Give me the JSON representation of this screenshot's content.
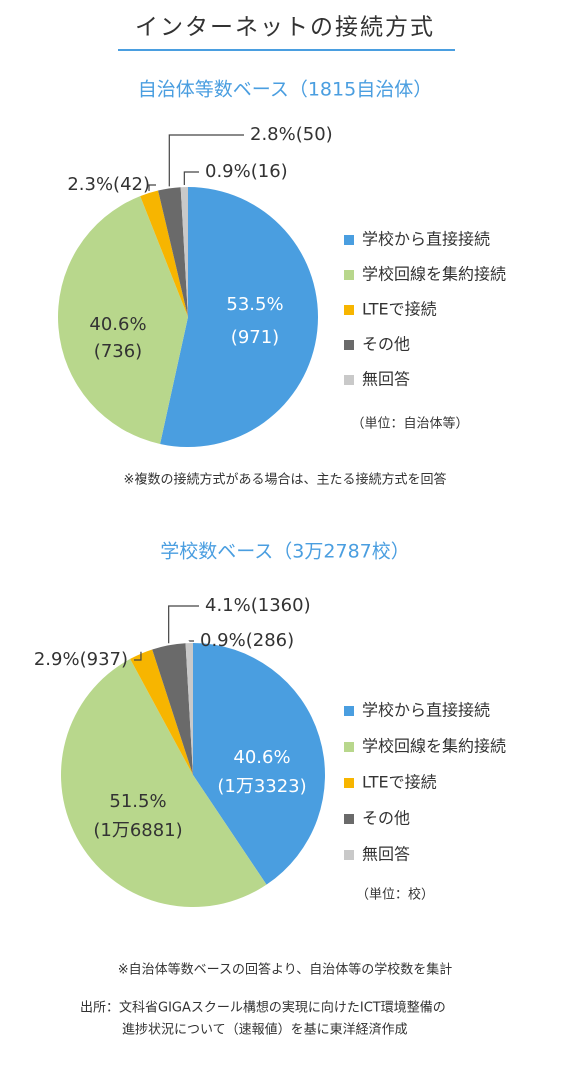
{
  "title": "インターネットの接続方式",
  "chart_data": [
    {
      "type": "pie",
      "subtitle": "自治体等数ベース（1815自治体）",
      "categories": [
        "学校から直接接続",
        "学校回線を集約接続",
        "LTEで接続",
        "その他",
        "無回答"
      ],
      "values": [
        53.5,
        40.6,
        2.3,
        2.8,
        0.9
      ],
      "value_labels": [
        "53.5%",
        "40.6%",
        "2.3%",
        "2.8%",
        "0.9%"
      ],
      "count_labels": [
        "(971)",
        "(736)",
        "(42)",
        "(50)",
        "(16)"
      ],
      "colors": [
        "#4a9ee0",
        "#b8d78c",
        "#f7b500",
        "#6a6a6a",
        "#c9c9c9"
      ],
      "unit_note": "（単位：自治体等）",
      "note": "※複数の接続方式がある場合は、主たる接続方式を回答"
    },
    {
      "type": "pie",
      "subtitle": "学校数ベース（3万2787校）",
      "categories": [
        "学校から直接接続",
        "学校回線を集約接続",
        "LTEで接続",
        "その他",
        "無回答"
      ],
      "values": [
        40.6,
        51.5,
        2.9,
        4.1,
        0.9
      ],
      "value_labels": [
        "40.6%",
        "51.5%",
        "2.9%",
        "4.1%",
        "0.9%"
      ],
      "count_labels": [
        "(1万3323)",
        "(1万6881)",
        "(937)",
        "(1360)",
        "(286)"
      ],
      "colors": [
        "#4a9ee0",
        "#b8d78c",
        "#f7b500",
        "#6a6a6a",
        "#c9c9c9"
      ],
      "unit_note": "（単位：校）",
      "note": "※自治体等数ベースの回答より、自治体等の学校数を集計"
    }
  ],
  "source": [
    "出所：文科省GIGAスクール構想の実現に向けたICT環境整備の",
    "進捗状況について（速報値）を基に東洋経済作成"
  ]
}
